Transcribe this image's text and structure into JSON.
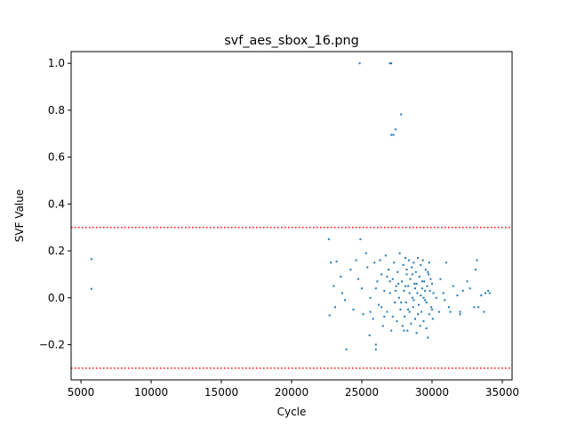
{
  "chart_data": {
    "type": "scatter",
    "title": "svf_aes_sbox_16.png",
    "xlabel": "Cycle",
    "ylabel": "SVF Value",
    "xlim": [
      4300,
      35700
    ],
    "ylim": [
      -0.35,
      1.05
    ],
    "xticks": [
      5000,
      10000,
      15000,
      20000,
      25000,
      30000,
      35000
    ],
    "xtick_labels": [
      "5000",
      "10000",
      "15000",
      "20000",
      "25000",
      "30000",
      "35000"
    ],
    "yticks": [
      -0.2,
      0.0,
      0.2,
      0.4,
      0.6,
      0.8,
      1.0
    ],
    "ytick_labels": [
      "−0.2",
      "0.0",
      "0.2",
      "0.4",
      "0.6",
      "0.8",
      "1.0"
    ],
    "grid": false,
    "point_color": "#1f77b4",
    "threshold_color": "#ff0000",
    "thresholds": [
      0.3,
      -0.3
    ],
    "points": [
      [
        5750,
        0.165
      ],
      [
        5750,
        0.038
      ],
      [
        24850,
        1.0
      ],
      [
        27000,
        1.0
      ],
      [
        27100,
        1.0
      ],
      [
        27800,
        0.782
      ],
      [
        27400,
        0.718
      ],
      [
        27100,
        0.695
      ],
      [
        27250,
        0.695
      ],
      [
        22650,
        0.25
      ],
      [
        24900,
        0.25
      ],
      [
        22700,
        -0.075
      ],
      [
        23900,
        -0.22
      ],
      [
        26000,
        -0.2
      ],
      [
        26000,
        -0.22
      ],
      [
        25550,
        -0.16
      ],
      [
        22800,
        0.15
      ],
      [
        23200,
        0.155
      ],
      [
        23500,
        0.09
      ],
      [
        23000,
        0.05
      ],
      [
        23100,
        -0.04
      ],
      [
        23600,
        0.02
      ],
      [
        23800,
        -0.01
      ],
      [
        24200,
        0.12
      ],
      [
        24400,
        -0.05
      ],
      [
        24600,
        0.16
      ],
      [
        24750,
        0.08
      ],
      [
        25000,
        0.04
      ],
      [
        25100,
        -0.07
      ],
      [
        25300,
        0.19
      ],
      [
        25400,
        0.13
      ],
      [
        25600,
        0.0
      ],
      [
        25800,
        -0.09
      ],
      [
        25900,
        0.15
      ],
      [
        26100,
        0.07
      ],
      [
        26200,
        -0.03
      ],
      [
        26300,
        0.16
      ],
      [
        26400,
        0.1
      ],
      [
        26500,
        -0.12
      ],
      [
        26600,
        0.03
      ],
      [
        26700,
        0.18
      ],
      [
        26800,
        -0.06
      ],
      [
        26900,
        0.12
      ],
      [
        27000,
        0.02
      ],
      [
        27100,
        -0.14
      ],
      [
        27200,
        0.08
      ],
      [
        27300,
        0.15
      ],
      [
        27350,
        -0.02
      ],
      [
        27450,
        0.05
      ],
      [
        27500,
        -0.1
      ],
      [
        27550,
        0.11
      ],
      [
        27650,
        0.0
      ],
      [
        27700,
        0.19
      ],
      [
        27750,
        -0.05
      ],
      [
        27850,
        0.07
      ],
      [
        27900,
        -0.12
      ],
      [
        27950,
        0.14
      ],
      [
        28000,
        0.03
      ],
      [
        28050,
        -0.08
      ],
      [
        28100,
        0.17
      ],
      [
        28150,
        -0.02
      ],
      [
        28200,
        0.1
      ],
      [
        28250,
        -0.14
      ],
      [
        28300,
        0.05
      ],
      [
        28350,
        0.16
      ],
      [
        28400,
        -0.06
      ],
      [
        28450,
        0.08
      ],
      [
        28500,
        -0.11
      ],
      [
        28550,
        0.13
      ],
      [
        28600,
        0.0
      ],
      [
        28650,
        -0.04
      ],
      [
        28700,
        0.15
      ],
      [
        28750,
        0.06
      ],
      [
        28800,
        -0.09
      ],
      [
        28850,
        0.11
      ],
      [
        28900,
        -0.15
      ],
      [
        28950,
        0.02
      ],
      [
        29000,
        0.17
      ],
      [
        29050,
        -0.03
      ],
      [
        29100,
        0.09
      ],
      [
        29150,
        -0.12
      ],
      [
        29200,
        0.14
      ],
      [
        29250,
        -0.06
      ],
      [
        29300,
        0.04
      ],
      [
        29350,
        0.16
      ],
      [
        29400,
        -0.1
      ],
      [
        29450,
        0.07
      ],
      [
        29500,
        -0.01
      ],
      [
        29550,
        0.12
      ],
      [
        29600,
        -0.13
      ],
      [
        29650,
        0.05
      ],
      [
        29700,
        -0.17
      ],
      [
        29750,
        0.1
      ],
      [
        29800,
        -0.07
      ],
      [
        29850,
        0.03
      ],
      [
        29900,
        0.08
      ],
      [
        29950,
        -0.04
      ],
      [
        30000,
        0.06
      ],
      [
        30050,
        -0.09
      ],
      [
        30100,
        0.02
      ],
      [
        28000,
        -0.14
      ],
      [
        28200,
        0.12
      ],
      [
        28600,
        0.1
      ],
      [
        29000,
        -0.07
      ],
      [
        29400,
        0.0
      ],
      [
        29800,
        0.15
      ],
      [
        27600,
        0.06
      ],
      [
        27200,
        -0.08
      ],
      [
        26800,
        0.09
      ],
      [
        26400,
        -0.04
      ],
      [
        26000,
        0.04
      ],
      [
        25600,
        -0.06
      ],
      [
        28400,
        0.02
      ],
      [
        28800,
        0.04
      ],
      [
        29200,
        0.01
      ],
      [
        29600,
        -0.02
      ],
      [
        27800,
        -0.02
      ],
      [
        28100,
        0.05
      ],
      [
        28700,
        -0.01
      ],
      [
        29300,
        0.07
      ],
      [
        26600,
        -0.08
      ],
      [
        27000,
        0.07
      ],
      [
        27400,
        0.03
      ],
      [
        28300,
        -0.05
      ],
      [
        28900,
        0.06
      ],
      [
        29500,
        0.03
      ],
      [
        30000,
        -0.05
      ],
      [
        29700,
        0.11
      ],
      [
        30500,
        -0.06
      ],
      [
        30800,
        0.02
      ],
      [
        31200,
        -0.04
      ],
      [
        31500,
        0.05
      ],
      [
        31800,
        0.01
      ],
      [
        32000,
        -0.06
      ],
      [
        32200,
        0.03
      ],
      [
        32500,
        0.07
      ],
      [
        32700,
        0.04
      ],
      [
        33000,
        -0.04
      ],
      [
        33200,
        0.16
      ],
      [
        33300,
        -0.04
      ],
      [
        33500,
        0.01
      ],
      [
        33700,
        -0.06
      ],
      [
        33800,
        0.02
      ],
      [
        34000,
        0.03
      ],
      [
        34100,
        0.02
      ],
      [
        31000,
        0.15
      ],
      [
        32000,
        -0.07
      ],
      [
        30600,
        0.08
      ],
      [
        31300,
        -0.06
      ],
      [
        33100,
        0.12
      ],
      [
        30300,
        0.0
      ],
      [
        30900,
        -0.01
      ]
    ]
  }
}
